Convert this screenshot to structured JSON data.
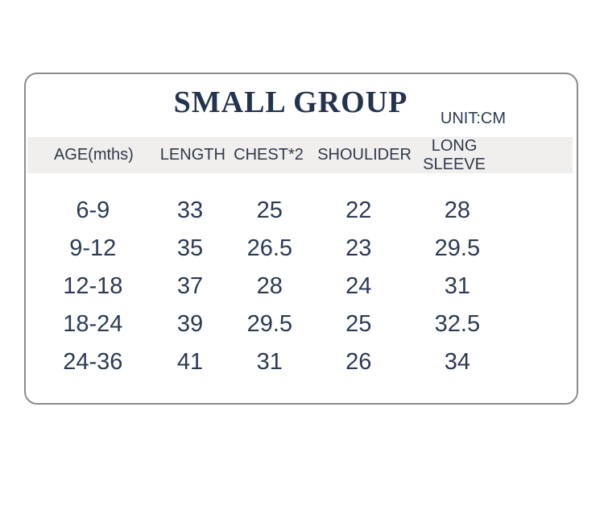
{
  "chart_data": {
    "type": "table",
    "title": "SMALL GROUP",
    "unit_label": "UNIT:CM",
    "columns": [
      "AGE(mths)",
      "LENGTH",
      "CHEST*2",
      "SHOULIDER",
      "LONG SLEEVE"
    ],
    "rows": [
      [
        "6-9",
        33,
        25,
        22,
        28
      ],
      [
        "9-12",
        35,
        26.5,
        23,
        29.5
      ],
      [
        "12-18",
        37,
        28,
        24,
        31
      ],
      [
        "18-24",
        39,
        29.5,
        25,
        32.5
      ],
      [
        "24-36",
        41,
        31,
        26,
        34
      ]
    ]
  },
  "colors": {
    "text_navy": "#2b3b55",
    "title_navy": "#24344f",
    "header_text": "#30394a",
    "header_band_bg": "#f0efee",
    "card_border": "#8b8b8b",
    "page_bg": "#ffffff"
  }
}
